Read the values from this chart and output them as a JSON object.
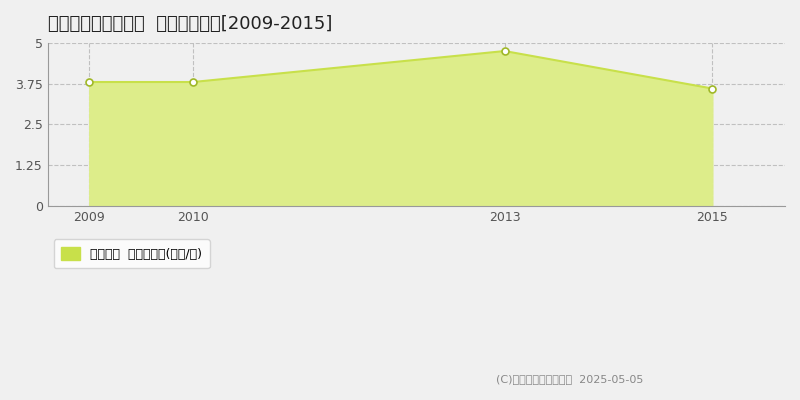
{
  "title": "足寄郡足寄町南四条  土地価格推移[2009-2015]",
  "years": [
    2009,
    2010,
    2013,
    2015
  ],
  "values": [
    3.8,
    3.8,
    4.75,
    3.6
  ],
  "line_color": "#c8e04a",
  "fill_color": "#dded8a",
  "marker_color": "#ffffff",
  "marker_edge_color": "#a0b828",
  "ylim": [
    0,
    5
  ],
  "yticks": [
    0,
    1.25,
    2.5,
    3.75,
    5
  ],
  "xlim_start": 2008.6,
  "xlim_end": 2015.7,
  "grid_color": "#bbbbbb",
  "background_color": "#f0f0f0",
  "plot_bg_color": "#f0f0f0",
  "legend_label": "土地価格  平均坪単価(万円/坪)",
  "copyright_text": "(C)土地価格ドットコム  2025-05-05",
  "title_fontsize": 13,
  "axis_label_fontsize": 9,
  "legend_fontsize": 9,
  "copyright_fontsize": 8,
  "dashed_line_y": 3.75,
  "dashed_line_color": "#b0b0b0"
}
